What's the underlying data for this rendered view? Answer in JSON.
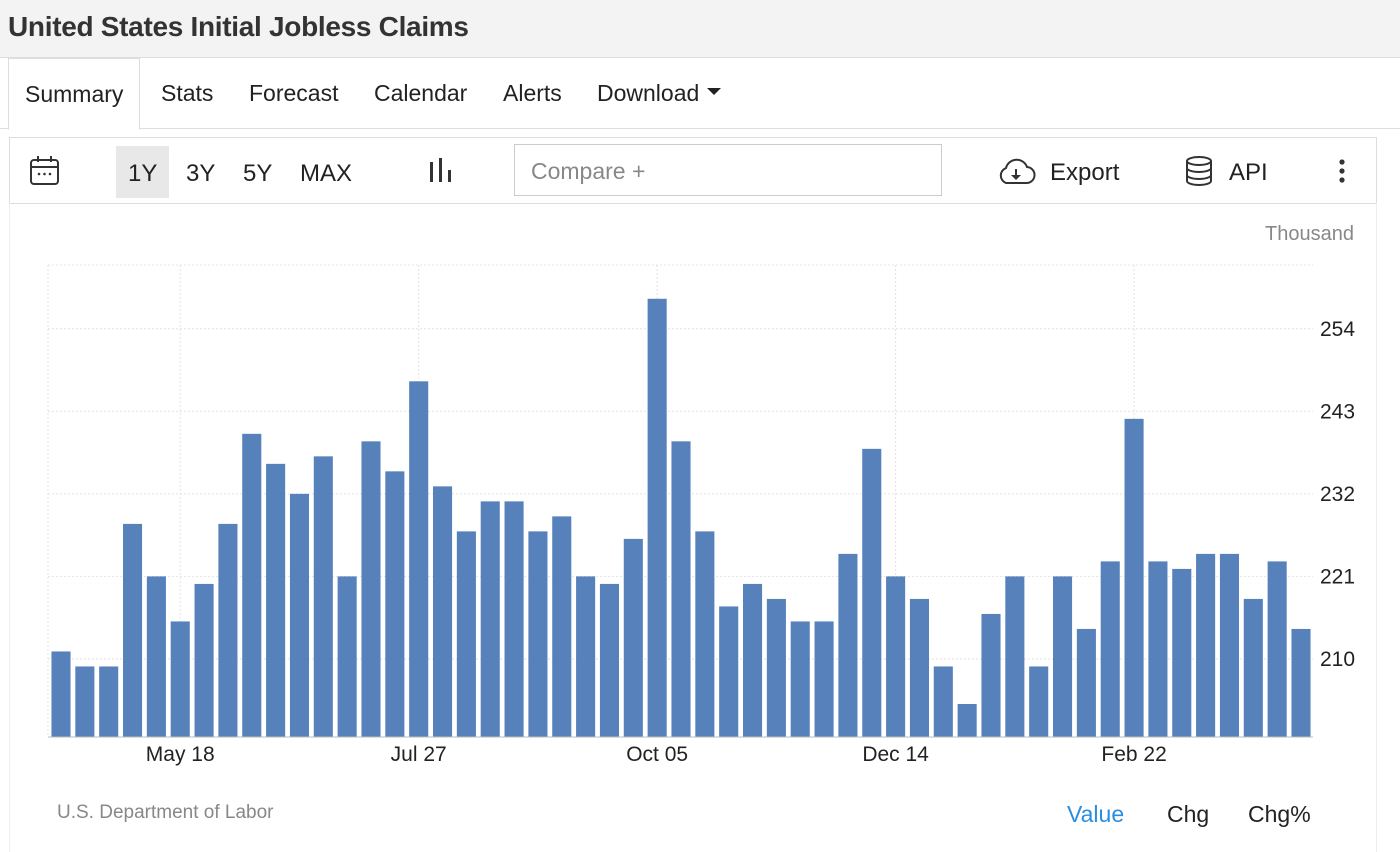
{
  "header": {
    "title": "United States Initial Jobless Claims"
  },
  "tabs": [
    "Summary",
    "Stats",
    "Forecast",
    "Calendar",
    "Alerts",
    "Download"
  ],
  "toolbar": {
    "ranges": [
      "1Y",
      "3Y",
      "5Y",
      "MAX"
    ],
    "compare_placeholder": "Compare +",
    "export": "Export",
    "api": "API"
  },
  "chart_data": {
    "type": "bar",
    "unit_label": "Thousand",
    "color": "#5681bb",
    "categories": [
      null,
      null,
      null,
      null,
      null,
      "May 18",
      null,
      null,
      null,
      null,
      null,
      null,
      null,
      null,
      null,
      "Jul 27",
      null,
      null,
      null,
      null,
      null,
      null,
      null,
      null,
      null,
      "Oct 05",
      null,
      null,
      null,
      null,
      null,
      null,
      null,
      null,
      null,
      "Dec 14",
      null,
      null,
      null,
      null,
      null,
      null,
      null,
      null,
      null,
      "Feb 22",
      null,
      null,
      null,
      null,
      null,
      null,
      null
    ],
    "values": [
      211,
      209,
      209,
      228,
      221,
      215,
      220,
      228,
      240,
      236,
      232,
      237,
      221,
      239,
      235,
      247,
      233,
      227,
      231,
      231,
      227,
      229,
      221,
      220,
      226,
      258,
      239,
      227,
      217,
      220,
      218,
      215,
      215,
      224,
      238,
      221,
      218,
      209,
      204,
      216,
      221,
      209,
      221,
      214,
      223,
      242,
      223,
      222,
      224,
      224,
      218,
      223,
      214
    ],
    "ylim": [
      199.6,
      262.5
    ],
    "yticks": [
      210,
      221,
      232,
      243,
      254
    ],
    "grid": true,
    "source": "U.S. Department of Labor"
  },
  "footer": {
    "modes": [
      "Value",
      "Chg",
      "Chg%"
    ]
  }
}
